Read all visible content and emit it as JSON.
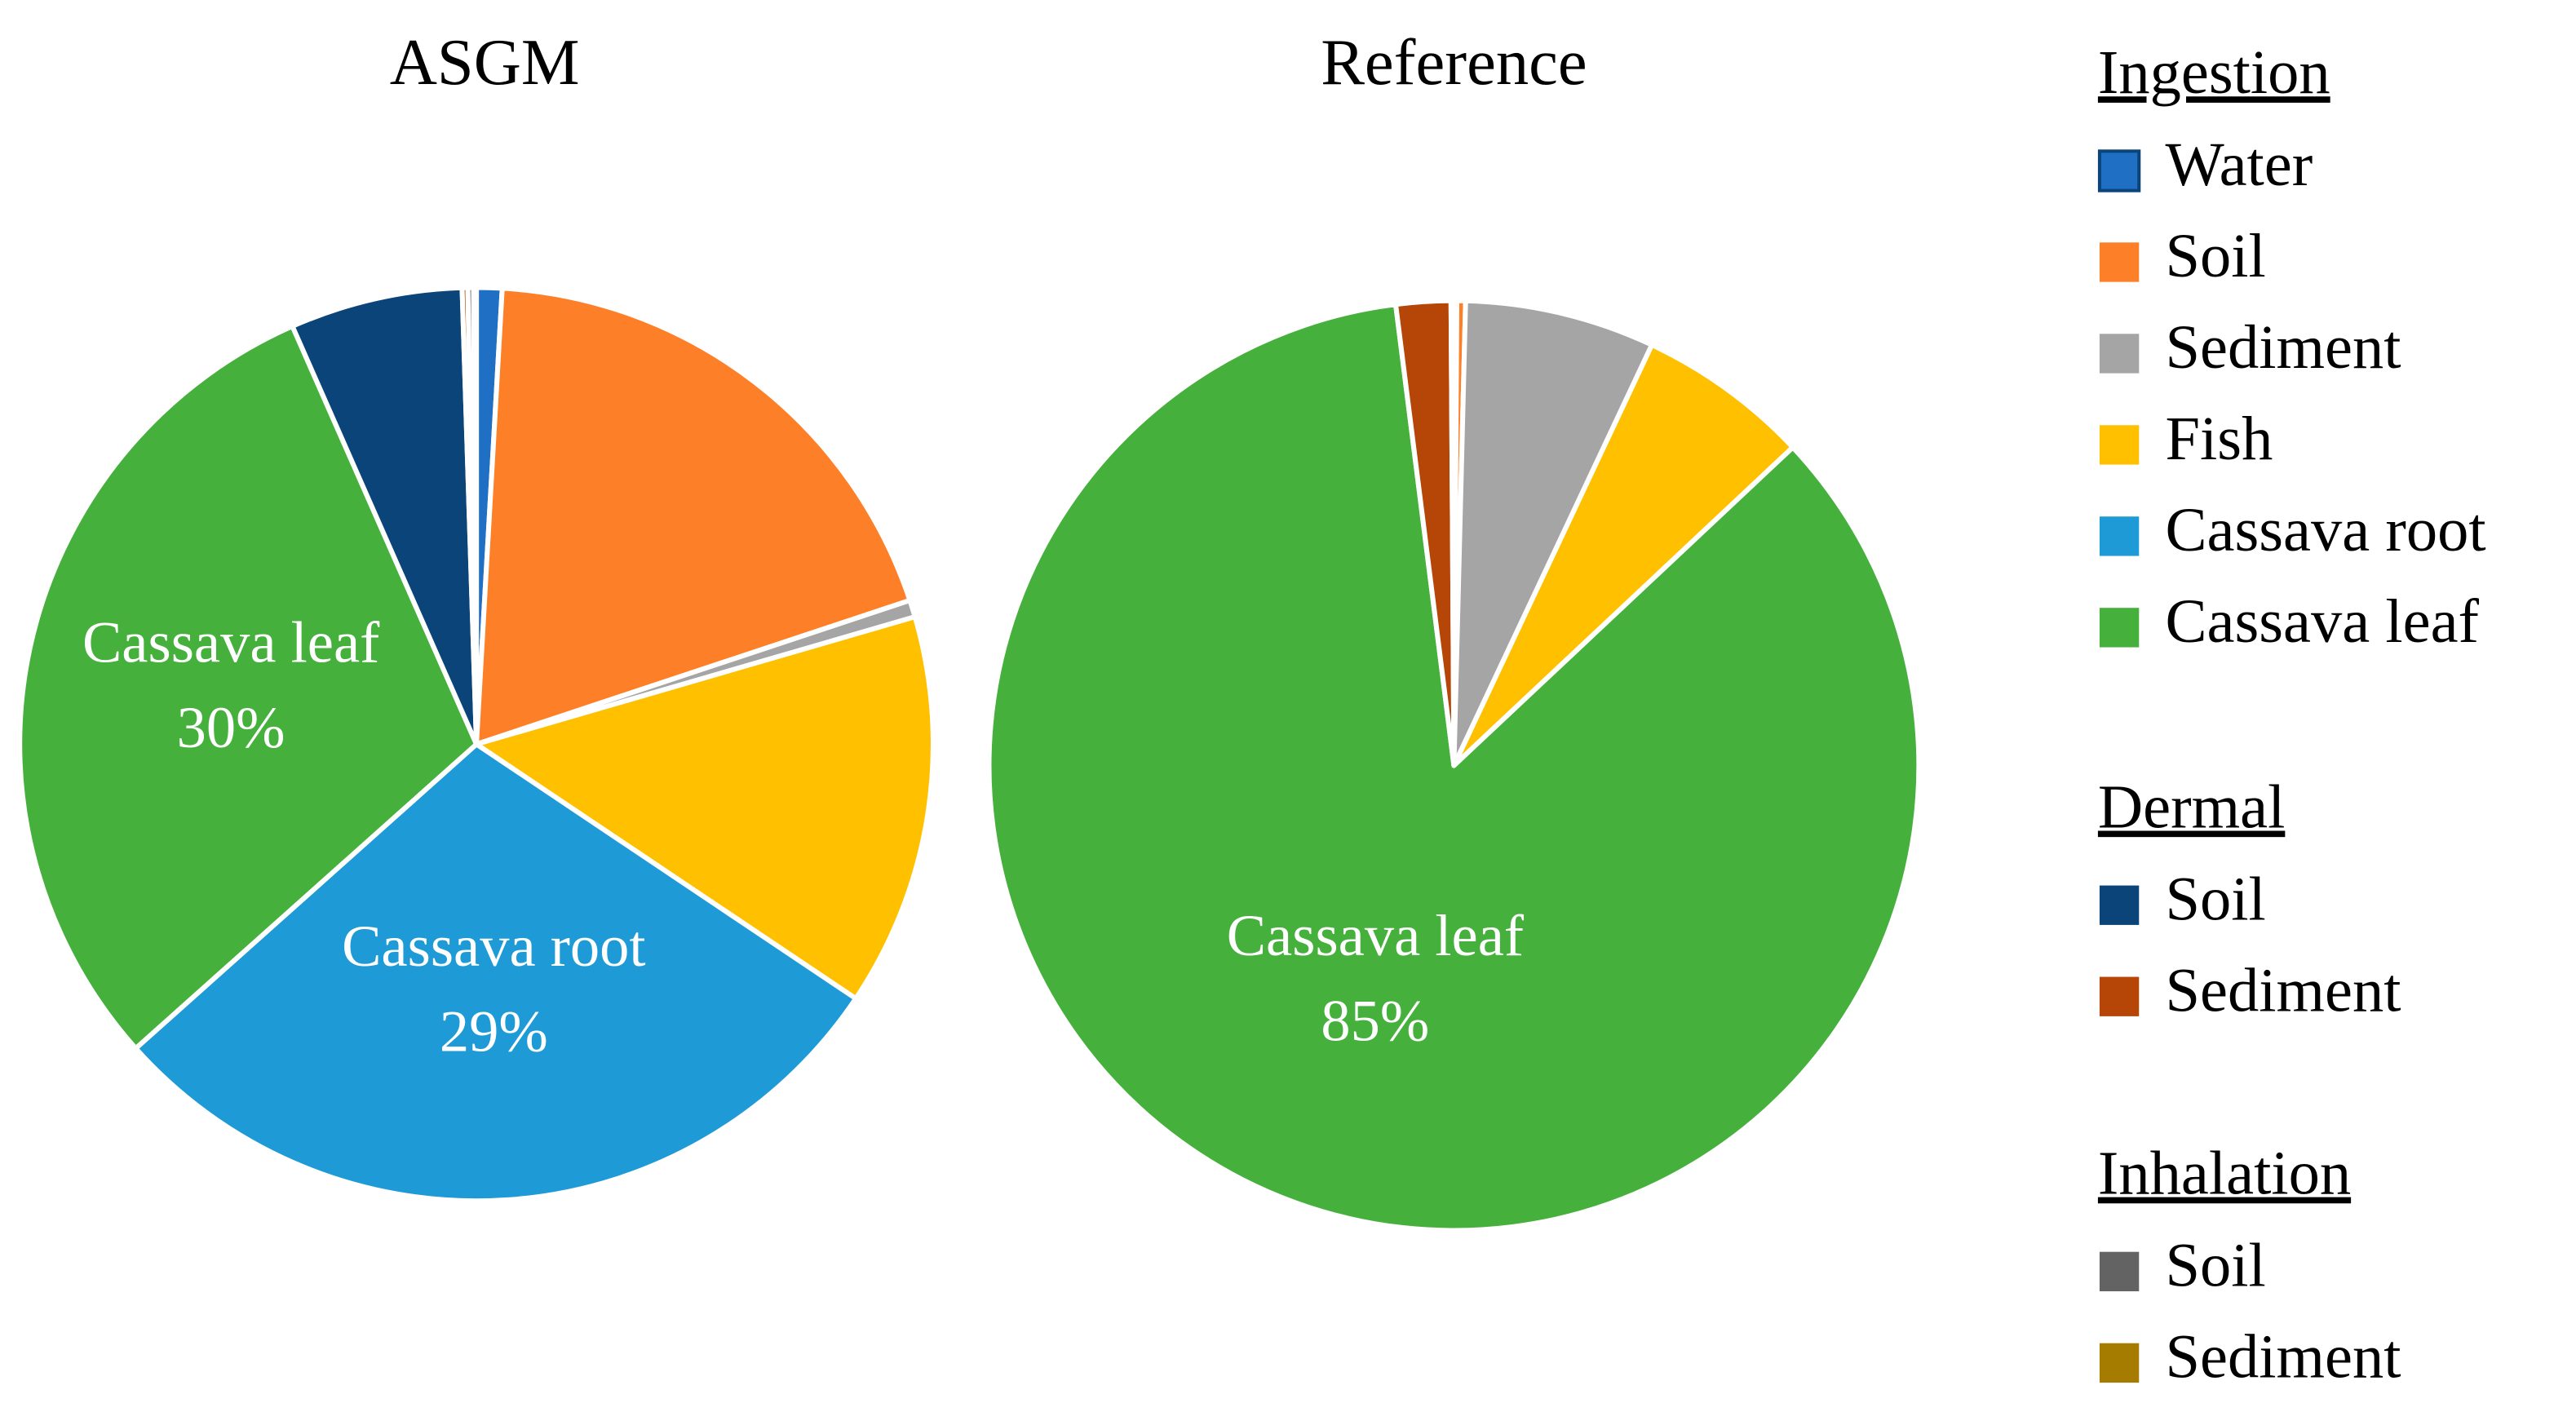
{
  "chart_data": [
    {
      "type": "pie",
      "title": "ASGM",
      "categories": [
        "Water",
        "Soil",
        "Sediment",
        "Fish",
        "Cassava root",
        "Cassava leaf",
        "Soil",
        "Sediment",
        "Soil",
        "Sediment"
      ],
      "values": [
        0.9,
        19,
        0.6,
        13.9,
        29,
        30,
        6.1,
        0.2,
        0.2,
        0.1
      ],
      "value_labels": [
        null,
        null,
        null,
        null,
        "29%",
        "30%",
        null,
        null,
        null,
        null
      ],
      "colors": [
        "#1f6fc5",
        "#fd7f28",
        "#a5a5a5",
        "#ffc000",
        "#1e9bd7",
        "#45b03b",
        "#0b4479",
        "#b54607",
        "#636363",
        "#a57c00"
      ]
    },
    {
      "type": "pie",
      "title": "Reference",
      "categories": [
        "Water",
        "Soil",
        "Sediment",
        "Fish",
        "Cassava root",
        "Cassava leaf",
        "Soil",
        "Sediment",
        "Soil",
        "Sediment"
      ],
      "values": [
        0.1,
        0.3,
        6.6,
        6,
        0,
        85,
        0,
        1.9,
        0.05,
        0.05
      ],
      "value_labels": [
        null,
        null,
        null,
        null,
        null,
        "85%",
        null,
        null,
        null,
        null
      ],
      "colors": [
        "#1f6fc5",
        "#fd7f28",
        "#a5a5a5",
        "#ffc000",
        "#1e9bd7",
        "#45b03b",
        "#0b4479",
        "#b54607",
        "#636363",
        "#a57c00"
      ]
    }
  ],
  "legend": [
    {
      "title": "Ingestion",
      "entries": [
        "Water",
        "Soil",
        "Sediment",
        "Fish",
        "Cassava root",
        "Cassava leaf"
      ]
    },
    {
      "title": "Dermal",
      "entries": [
        "Soil",
        "Sediment"
      ]
    },
    {
      "title": "Inhalation",
      "entries": [
        "Soil",
        "Sediment"
      ]
    }
  ]
}
